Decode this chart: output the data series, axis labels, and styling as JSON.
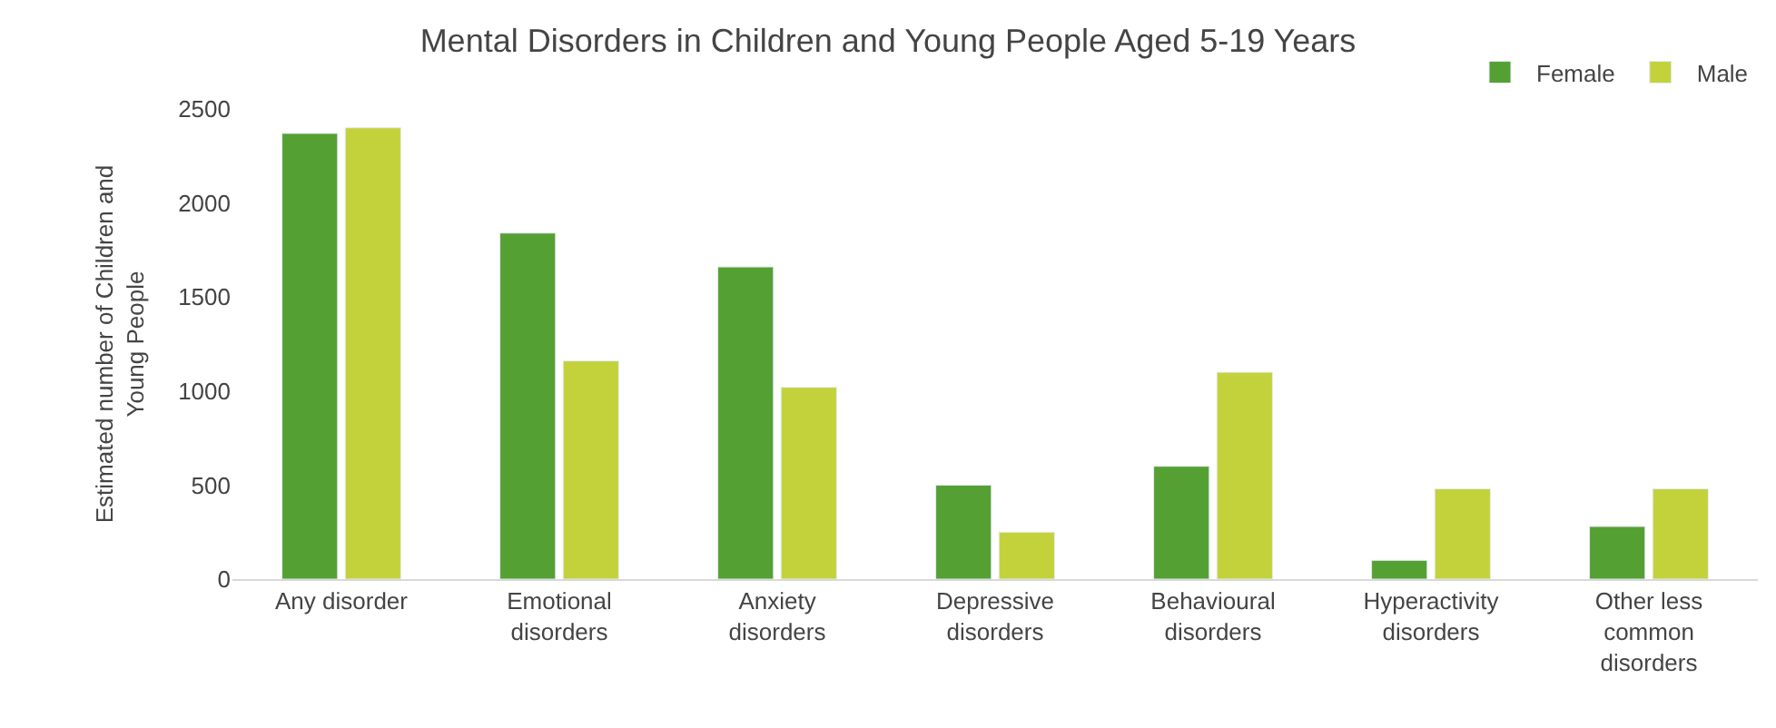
{
  "chart_data": {
    "type": "bar",
    "title": "Mental Disorders in Children and Young People Aged 5-19 Years",
    "ylabel": "Estimated number of Children and Young People",
    "categories": [
      "Any disorder",
      "Emotional disorders",
      "Anxiety disorders",
      "Depressive disorders",
      "Behavioural disorders",
      "Hyperactivity disorders",
      "Other less common disorders"
    ],
    "series": [
      {
        "name": "Female",
        "color": "#55a033",
        "values": [
          2370,
          1840,
          1660,
          500,
          600,
          100,
          280
        ]
      },
      {
        "name": "Male",
        "color": "#c3d23b",
        "values": [
          2400,
          1160,
          1020,
          250,
          1100,
          480,
          480
        ]
      }
    ],
    "ylim": [
      0,
      2500
    ],
    "yticks": [
      0,
      500,
      1000,
      1500,
      2000,
      2500
    ],
    "grid": false,
    "legend": "top right"
  }
}
